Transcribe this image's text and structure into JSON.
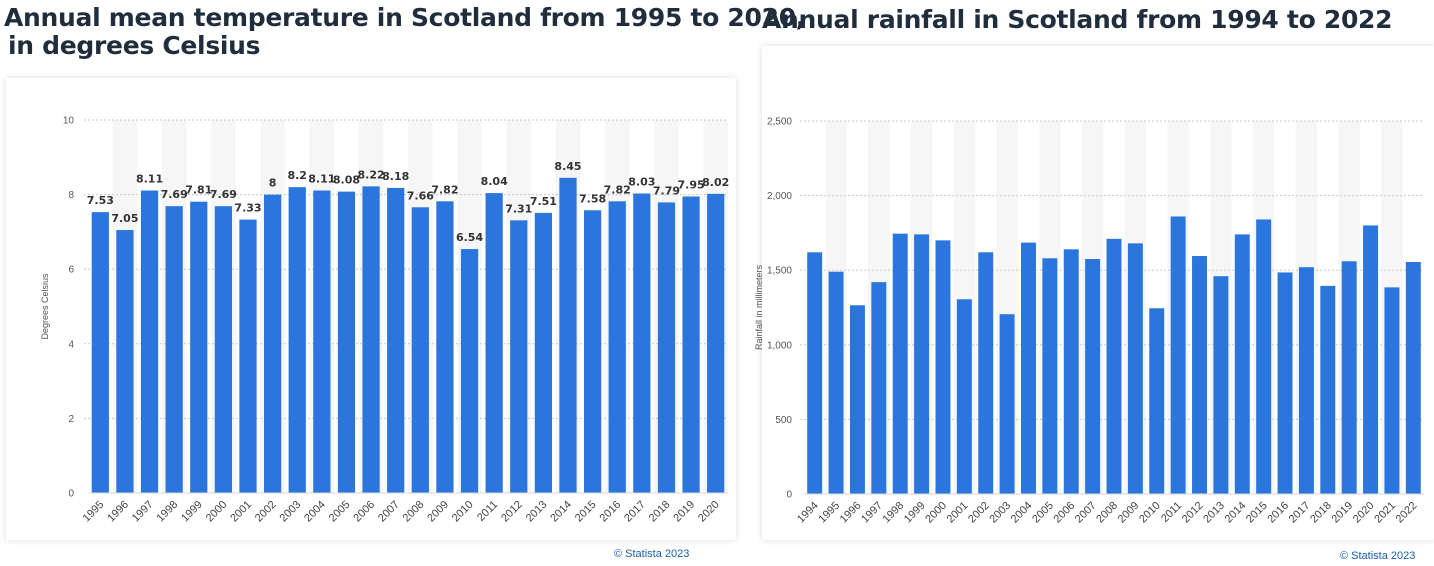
{
  "temperature": {
    "title_line1": "Annual mean temperature in Scotland from 1995 to 2020,",
    "title_line2": "in degrees Celsius",
    "credit": "© Statista 2023",
    "chart_data": {
      "type": "bar",
      "title": "Annual mean temperature in Scotland from 1995 to 2020, in degrees Celsius",
      "ylabel": "Degrees Celsius",
      "ylim": [
        0,
        10
      ],
      "yticks": [
        0,
        2,
        4,
        6,
        8,
        10
      ],
      "ytick_labels": [
        "0",
        "2",
        "4",
        "6",
        "8",
        "10"
      ],
      "grid": true,
      "show_data_labels": true,
      "bar_color": "#2a76dd",
      "categories": [
        "1995",
        "1996",
        "1997",
        "1998",
        "1999",
        "2000",
        "2001",
        "2002",
        "2003",
        "2004",
        "2005",
        "2006",
        "2007",
        "2008",
        "2009",
        "2010",
        "2011",
        "2012",
        "2013",
        "2014",
        "2015",
        "2016",
        "2017",
        "2018",
        "2019",
        "2020"
      ],
      "values": [
        7.53,
        7.05,
        8.11,
        7.69,
        7.81,
        7.69,
        7.33,
        8,
        8.2,
        8.11,
        8.08,
        8.22,
        8.18,
        7.66,
        7.82,
        6.54,
        8.04,
        7.31,
        7.51,
        8.45,
        7.58,
        7.82,
        8.03,
        7.79,
        7.95,
        8.02
      ]
    }
  },
  "rainfall": {
    "title": "Annual rainfall in Scotland from 1994 to 2022",
    "credit": "© Statista 2023",
    "chart_data": {
      "type": "bar",
      "title": "Annual rainfall in Scotland from 1994 to 2022",
      "ylabel": "Rainfall in millimeters",
      "ylim": [
        0,
        2500
      ],
      "yticks": [
        0,
        500,
        1000,
        1500,
        2000,
        2500
      ],
      "ytick_labels": [
        "0",
        "500",
        "1,000",
        "1,500",
        "2,000",
        "2,500"
      ],
      "grid": true,
      "show_data_labels": false,
      "bar_color": "#2a76dd",
      "categories": [
        "1994",
        "1995",
        "1996",
        "1997",
        "1998",
        "1999",
        "2000",
        "2001",
        "2002",
        "2003",
        "2004",
        "2005",
        "2006",
        "2007",
        "2008",
        "2009",
        "2010",
        "2011",
        "2012",
        "2013",
        "2014",
        "2015",
        "2016",
        "2017",
        "2018",
        "2019",
        "2020",
        "2021",
        "2022"
      ],
      "values": [
        1620,
        1490,
        1265,
        1420,
        1745,
        1740,
        1700,
        1305,
        1620,
        1205,
        1685,
        1580,
        1640,
        1575,
        1710,
        1680,
        1245,
        1860,
        1595,
        1460,
        1740,
        1840,
        1485,
        1520,
        1395,
        1560,
        1800,
        1385,
        1555
      ]
    }
  }
}
